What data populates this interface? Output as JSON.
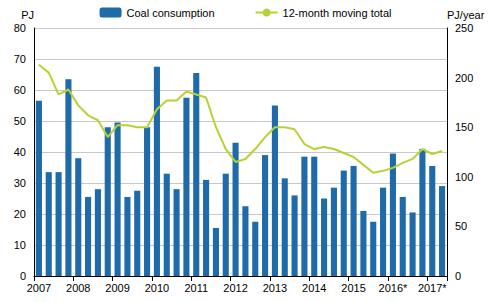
{
  "chart_data": {
    "type": "bar",
    "categories": [
      "2007",
      null,
      null,
      null,
      "2008",
      null,
      null,
      null,
      "2009",
      null,
      null,
      null,
      "2010",
      null,
      null,
      null,
      "2011",
      null,
      null,
      null,
      "2012",
      null,
      null,
      null,
      "2013",
      null,
      null,
      null,
      "2014",
      null,
      null,
      null,
      "2015",
      null,
      null,
      null,
      "2016*",
      null,
      null,
      null,
      "2017*",
      null
    ],
    "series": [
      {
        "name": "Coal consumption",
        "type": "bar",
        "color": "#1f6aa8",
        "values": [
          56.5,
          33.5,
          33.5,
          63.5,
          38,
          25.5,
          28,
          48,
          49.5,
          25.5,
          27.5,
          48,
          67.5,
          33,
          28,
          57.5,
          65.5,
          31,
          15.5,
          33,
          43,
          22.5,
          17.5,
          39,
          55,
          31.5,
          26,
          38.5,
          38.5,
          25,
          28.5,
          34,
          35.5,
          21,
          17.5,
          28.5,
          39.5,
          25.5,
          20.5,
          41,
          35.5,
          29
        ]
      },
      {
        "name": "12-month moving total",
        "type": "line",
        "axis": "y2",
        "color": "#b5d334",
        "marker": "none",
        "values": [
          213,
          205,
          183,
          188,
          172,
          162,
          157,
          140,
          152,
          152,
          150,
          150,
          168,
          177,
          177,
          186,
          183,
          180,
          150,
          128,
          115,
          118,
          128,
          140,
          150,
          150,
          148,
          133,
          128,
          130,
          128,
          124,
          120,
          112,
          104,
          106,
          109,
          114,
          118,
          128,
          123,
          126
        ]
      }
    ],
    "y_label": "PJ",
    "y2_label": "PJ/year",
    "ylim": [
      0,
      80
    ],
    "yticks": [
      0,
      10,
      20,
      30,
      40,
      50,
      60,
      70,
      80
    ],
    "y2lim": [
      0,
      250
    ],
    "y2ticks": [
      0,
      50,
      100,
      150,
      200,
      250
    ],
    "grid": true,
    "legend": "top"
  }
}
